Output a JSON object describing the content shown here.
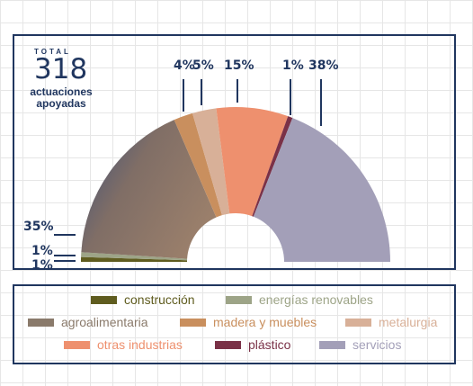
{
  "chart_data": {
    "type": "pie",
    "shape": "half-donut",
    "total_label": "TOTAL",
    "total_value": "318",
    "total_description": "actuaciones apoyadas",
    "categories": [
      "construcción",
      "energías renovables",
      "agroalimentaria",
      "madera y muebles",
      "metalurgia",
      "otras industrias",
      "plástico",
      "servicios"
    ],
    "values": [
      1,
      1,
      35,
      4,
      5,
      15,
      1,
      38
    ],
    "value_labels": [
      "1%",
      "1%",
      "35%",
      "4%",
      "5%",
      "15%",
      "1%",
      "38%"
    ],
    "colors": [
      "#5f5c1f",
      "#9da487",
      "#8a7a6b",
      "#c98f5e",
      "#d8b098",
      "#ee906e",
      "#7a3147",
      "#a39fb8"
    ],
    "legend_placement": "bottom"
  },
  "legend": {
    "text_colors": [
      "#5f5c1f",
      "#9da487",
      "#8a7a6b",
      "#c98f5e",
      "#d8b098",
      "#ee906e",
      "#7a3147",
      "#a39fb8"
    ]
  }
}
